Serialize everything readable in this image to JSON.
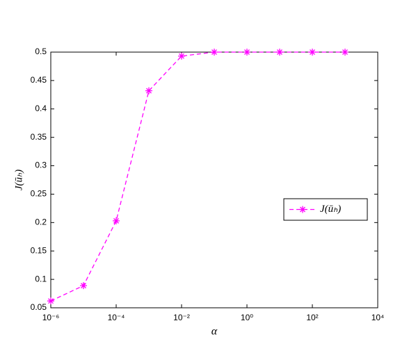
{
  "chart_data": {
    "type": "line",
    "xscale": "log",
    "x_label": "α",
    "y_label": "J(ūₕ)",
    "x": [
      1e-06,
      1e-05,
      0.0001,
      0.001,
      0.01,
      0.1,
      1,
      10,
      100,
      1000
    ],
    "series": [
      {
        "name": "J(ūₕ)",
        "color": "#ff00ff",
        "values": [
          0.062,
          0.089,
          0.203,
          0.432,
          0.493,
          0.5,
          0.5,
          0.5,
          0.5,
          0.5
        ]
      }
    ],
    "xlim": [
      1e-06,
      10000
    ],
    "xticks": [
      {
        "value": 1e-06,
        "label": "10⁻⁶"
      },
      {
        "value": 0.0001,
        "label": "10⁻⁴"
      },
      {
        "value": 0.01,
        "label": "10⁻²"
      },
      {
        "value": 1,
        "label": "10⁰"
      },
      {
        "value": 100,
        "label": "10²"
      },
      {
        "value": 10000,
        "label": "10⁴"
      }
    ],
    "ylim": [
      0.05,
      0.5
    ],
    "yticks": [
      0.05,
      0.1,
      0.15,
      0.2,
      0.25,
      0.3,
      0.35,
      0.4,
      0.45,
      0.5
    ],
    "legend": "east",
    "grid": false
  }
}
